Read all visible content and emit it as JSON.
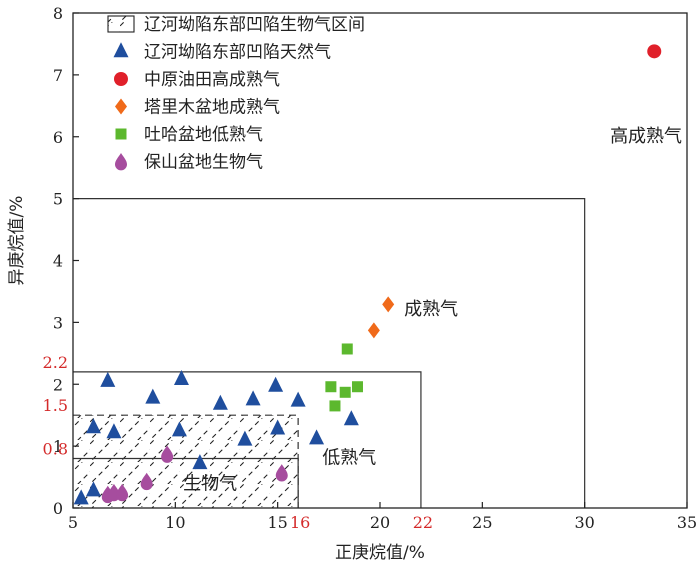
{
  "chart_data": {
    "type": "scatter",
    "xlabel": "正庚烷值/%",
    "ylabel": "异庚烷值/%",
    "xlim": [
      5,
      35
    ],
    "ylim": [
      0,
      8
    ],
    "xticks": [
      "5",
      "10",
      "15",
      "20",
      "25",
      "30",
      "35"
    ],
    "yticks": [
      "0",
      "1",
      "2",
      "3",
      "4",
      "5",
      "6",
      "7",
      "8"
    ],
    "extra_xticks": [
      "16",
      "22"
    ],
    "extra_yticks": [
      "0.8",
      "1.5",
      "2.2"
    ],
    "grid": false,
    "legend_position": "top-left",
    "colors": {
      "liaohe": "#1f4e9e",
      "zhongyuan": "#e0202a",
      "tarim": "#f06a1a",
      "tuha": "#5cb82e",
      "baoshan": "#a64d9e"
    },
    "legend": [
      {
        "key": "biogas_region",
        "label": "辽河坳陷东部凹陷生物气区间",
        "marker": "hatched-rect"
      },
      {
        "key": "liaohe",
        "label": "辽河坳陷东部凹陷天然气",
        "marker": "triangle"
      },
      {
        "key": "zhongyuan",
        "label": "中原油田高成熟气",
        "marker": "circle"
      },
      {
        "key": "tarim",
        "label": "塔里木盆地成熟气",
        "marker": "diamond"
      },
      {
        "key": "tuha",
        "label": "吐哈盆地低熟气",
        "marker": "square"
      },
      {
        "key": "baoshan",
        "label": "保山盆地生物气",
        "marker": "drop"
      }
    ],
    "regions": [
      {
        "label": "高成熟气",
        "x": [
          5,
          30
        ],
        "y": [
          0,
          5
        ],
        "label_at": [
          33.0,
          6.0
        ]
      },
      {
        "label": "成熟气",
        "x": [
          5,
          22
        ],
        "y": [
          0,
          2.2
        ],
        "label_at": [
          22.5,
          3.2
        ]
      },
      {
        "label": "低熟气",
        "x": [
          5,
          16
        ],
        "y": [
          0,
          1.5
        ],
        "label_at": [
          18.5,
          0.8
        ]
      },
      {
        "label": "生物气",
        "x": [
          5,
          16
        ],
        "y": [
          0,
          0.8
        ],
        "label_at": [
          11.7,
          0.38
        ]
      }
    ],
    "biogas_region": {
      "x": [
        5,
        16
      ],
      "y": [
        0,
        1.5
      ]
    },
    "series": [
      {
        "key": "liaohe",
        "name": "辽河坳陷东部凹陷天然气",
        "marker": "triangle",
        "points": [
          [
            5.4,
            0.15
          ],
          [
            6.0,
            0.28
          ],
          [
            6.0,
            1.3
          ],
          [
            6.7,
            2.05
          ],
          [
            7.0,
            1.22
          ],
          [
            8.9,
            1.78
          ],
          [
            10.2,
            1.25
          ],
          [
            10.3,
            2.08
          ],
          [
            11.2,
            0.72
          ],
          [
            12.2,
            1.68
          ],
          [
            13.4,
            1.1
          ],
          [
            13.8,
            1.75
          ],
          [
            14.9,
            1.97
          ],
          [
            15.0,
            1.28
          ],
          [
            16.0,
            1.73
          ],
          [
            16.9,
            1.12
          ],
          [
            18.6,
            1.43
          ]
        ]
      },
      {
        "key": "zhongyuan",
        "name": "中原油田高成熟气",
        "marker": "circle",
        "points": [
          [
            33.4,
            7.38
          ]
        ]
      },
      {
        "key": "tarim",
        "name": "塔里木盆地成熟气",
        "marker": "diamond",
        "points": [
          [
            19.7,
            2.87
          ],
          [
            20.4,
            3.29
          ]
        ]
      },
      {
        "key": "tuha",
        "name": "吐哈盆地低熟气",
        "marker": "square",
        "points": [
          [
            18.4,
            2.57
          ],
          [
            17.6,
            1.96
          ],
          [
            17.8,
            1.65
          ],
          [
            18.3,
            1.87
          ],
          [
            18.9,
            1.96
          ]
        ]
      },
      {
        "key": "baoshan",
        "name": "保山盆地生物气",
        "marker": "drop",
        "points": [
          [
            6.7,
            0.19
          ],
          [
            7.0,
            0.22
          ],
          [
            7.4,
            0.22
          ],
          [
            8.6,
            0.4
          ],
          [
            9.6,
            0.84
          ],
          [
            15.2,
            0.54
          ]
        ]
      }
    ]
  }
}
